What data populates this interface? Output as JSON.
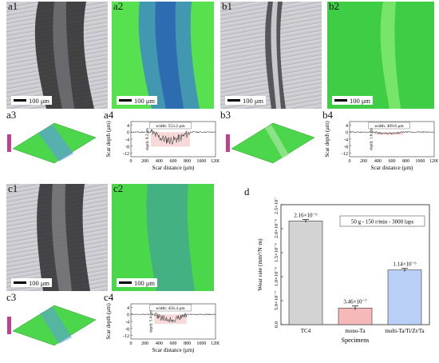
{
  "panels": {
    "a1": "a1",
    "a2": "a2",
    "a3": "a3",
    "a4": "a4",
    "b1": "b1",
    "b2": "b2",
    "b3": "b3",
    "b4": "b4",
    "c1": "c1",
    "c2": "c2",
    "c3": "c3",
    "c4": "c4",
    "d": "d"
  },
  "scale_bar_text": "100 μm",
  "profiles": {
    "a4": {
      "width_label": "width: 553.2 μm",
      "depth_label": "depth: 8.3 μm"
    },
    "b4": {
      "width_label": "width: 409.6 μm",
      "depth_label": "depth: 1.6 μm"
    },
    "c4": {
      "width_label": "width: 456.4 μm",
      "depth_label": "depth: 5.4 μm"
    },
    "ylabel": "Scar depth (μm)",
    "xlabel": "Scar distance (μm)",
    "yticks": [
      "4",
      "0",
      "-4",
      "-8",
      "-12"
    ],
    "xticks": [
      "0",
      "200",
      "400",
      "600",
      "800",
      "1000",
      "1200"
    ]
  },
  "chart_data": {
    "type": "bar",
    "title": "",
    "annotation": "50 g - 150 r/min - 3000 laps",
    "xlabel": "Specimens",
    "ylabel": "Wear rate (mm³/N·m)",
    "categories": [
      "TC4",
      "mono-Ta",
      "multi-Ta/Ti/Zr/Ta"
    ],
    "values": [
      2.16e-06,
      3.46e-07,
      1.14e-06
    ],
    "errors": [
      1.5e-08,
      2.5e-08,
      1.5e-08
    ],
    "value_labels": [
      "2.16×10⁻⁶",
      "3.46×10⁻⁷",
      "1.14×10⁻⁶"
    ],
    "colors": [
      "#d3d3d3",
      "#f6b8b8",
      "#b9cff5"
    ],
    "ylim": [
      0,
      2.5e-06
    ],
    "yticks": [
      0.0,
      5e-07,
      1e-06,
      1.5e-06,
      2e-06,
      2.5e-06
    ],
    "ytick_labels": [
      "0.0",
      "5.0×10⁻⁷",
      "1.0×10⁻⁶",
      "1.5×10⁻⁶",
      "2.0×10⁻⁶",
      "2.5×10⁻⁶"
    ]
  }
}
